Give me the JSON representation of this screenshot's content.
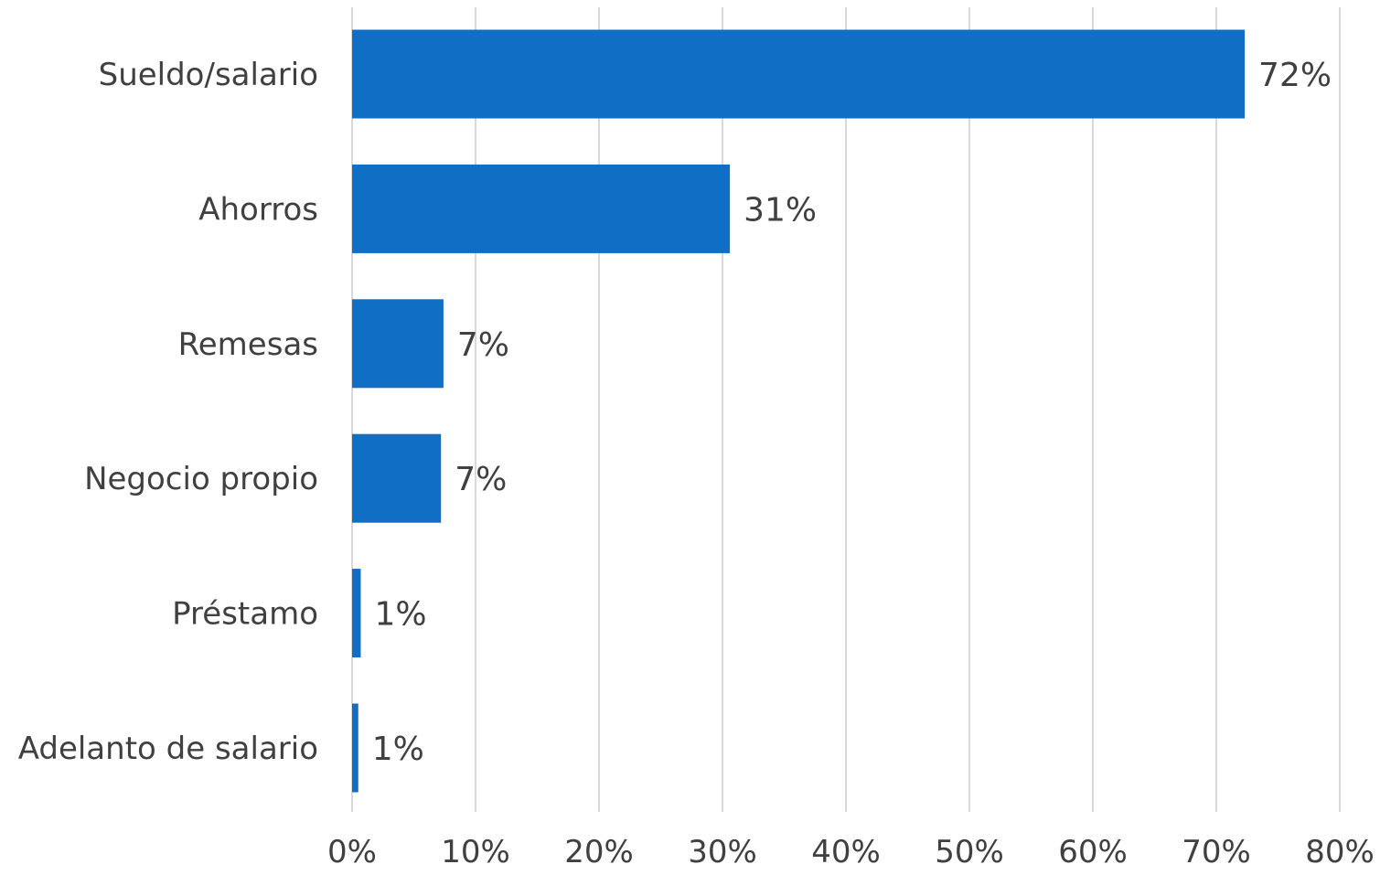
{
  "chart_data": {
    "type": "bar",
    "orientation": "horizontal",
    "title": "",
    "xlabel": "",
    "ylabel": "",
    "categories": [
      "Sueldo/salario",
      "Ahorros",
      "Remesas",
      "Negocio propio",
      "Préstamo",
      "Adelanto de salario"
    ],
    "values": [
      72.3,
      30.6,
      7.4,
      7.2,
      0.7,
      0.5
    ],
    "data_labels": [
      "72%",
      "31%",
      "7%",
      "7%",
      "1%",
      "1%"
    ],
    "xlim": [
      0,
      80
    ],
    "x_ticks": [
      0,
      10,
      20,
      30,
      40,
      50,
      60,
      70,
      80
    ],
    "x_tick_labels": [
      "0%",
      "10%",
      "20%",
      "30%",
      "40%",
      "50%",
      "60%",
      "70%",
      "80%"
    ],
    "grid": "vertical",
    "legend": "none",
    "colors": {
      "bar": "#106EC4",
      "grid": "#D9D9D9",
      "text": "#404040"
    }
  }
}
